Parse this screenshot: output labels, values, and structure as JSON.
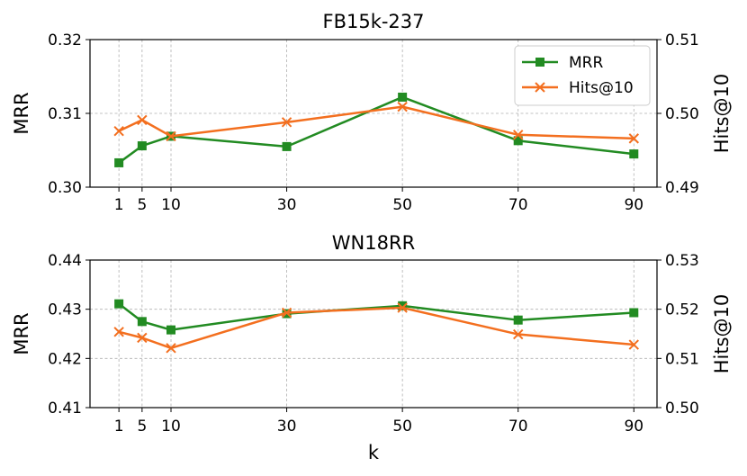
{
  "chart_data": [
    {
      "type": "line",
      "title": "FB15k-237",
      "xlabel": "",
      "ylabel_left": "MRR",
      "ylabel_right": "Hits@10",
      "x": [
        1,
        5,
        10,
        30,
        50,
        70,
        90
      ],
      "xticks": [
        1,
        5,
        10,
        30,
        50,
        70,
        90
      ],
      "ylim_left": [
        0.3,
        0.32
      ],
      "yticks_left": [
        "0.30",
        "0.31",
        "0.32"
      ],
      "ylim_right": [
        0.49,
        0.51
      ],
      "yticks_right": [
        "0.49",
        "0.50",
        "0.51"
      ],
      "grid": true,
      "legend_position": "top-right",
      "series": [
        {
          "name": "MRR",
          "axis": "left",
          "marker": "square",
          "color": "#228B22",
          "values": [
            0.3033,
            0.3056,
            0.3069,
            0.3055,
            0.3122,
            0.3063,
            0.3045
          ]
        },
        {
          "name": "Hits@10",
          "axis": "right",
          "marker": "x",
          "color": "#F36F1F",
          "values": [
            0.4976,
            0.4991,
            0.4969,
            0.4988,
            0.5009,
            0.4971,
            0.4966
          ]
        }
      ]
    },
    {
      "type": "line",
      "title": "WN18RR",
      "xlabel": "k",
      "ylabel_left": "MRR",
      "ylabel_right": "Hits@10",
      "x": [
        1,
        5,
        10,
        30,
        50,
        70,
        90
      ],
      "xticks": [
        1,
        5,
        10,
        30,
        50,
        70,
        90
      ],
      "ylim_left": [
        0.41,
        0.44
      ],
      "yticks_left": [
        "0.41",
        "0.42",
        "0.43",
        "0.44"
      ],
      "ylim_right": [
        0.5,
        0.53
      ],
      "yticks_right": [
        "0.50",
        "0.51",
        "0.52",
        "0.53"
      ],
      "grid": true,
      "legend_position": "none",
      "series": [
        {
          "name": "MRR",
          "axis": "left",
          "marker": "square",
          "color": "#228B22",
          "values": [
            0.4311,
            0.4275,
            0.4258,
            0.4291,
            0.4307,
            0.4278,
            0.4293
          ]
        },
        {
          "name": "Hits@10",
          "axis": "right",
          "marker": "x",
          "color": "#F36F1F",
          "values": [
            0.5154,
            0.5142,
            0.5121,
            0.5193,
            0.5203,
            0.5149,
            0.5128
          ]
        }
      ]
    }
  ]
}
